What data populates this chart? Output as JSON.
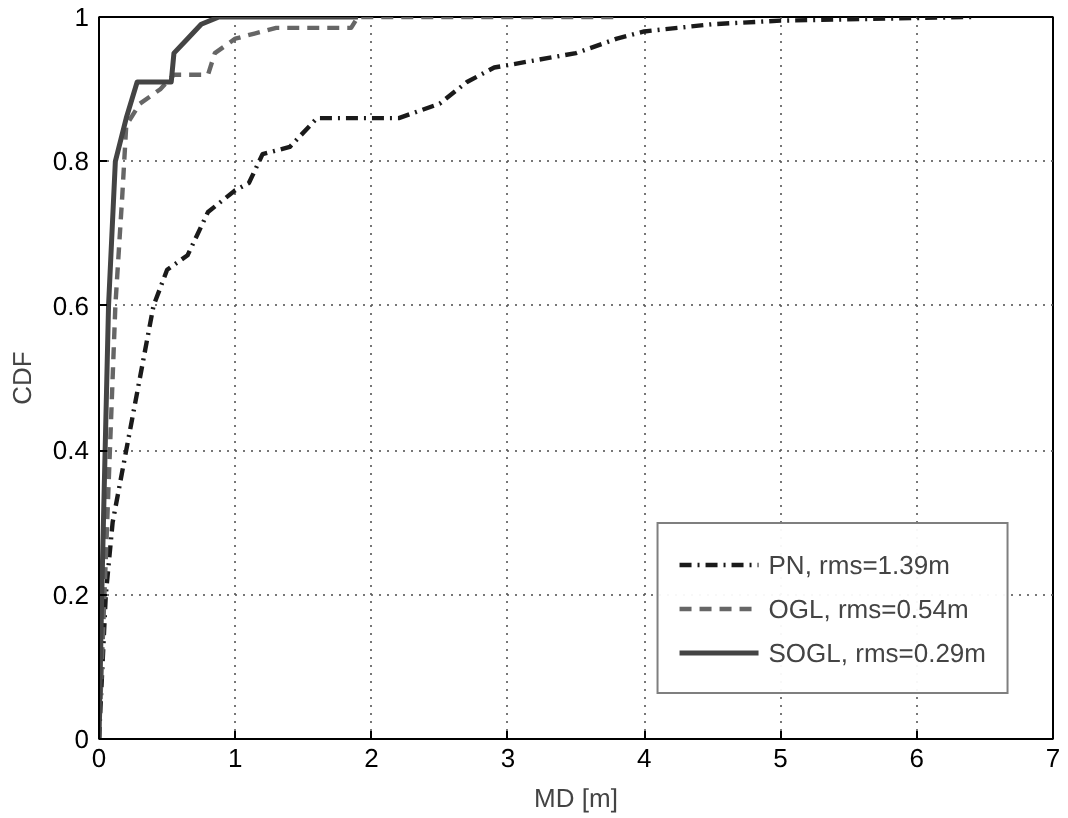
{
  "chart_data": {
    "type": "line",
    "xlabel": "MD [m]",
    "ylabel": "CDF",
    "xlim": [
      0,
      7
    ],
    "ylim": [
      0,
      1
    ],
    "xticks": [
      0,
      1,
      2,
      3,
      4,
      5,
      6,
      7
    ],
    "yticks": [
      0,
      0.2,
      0.4,
      0.6,
      0.8,
      1
    ],
    "grid": true,
    "legend": "bottom right",
    "marker": "none",
    "series": [
      {
        "name": "PN, rms=1.39m",
        "color": "#1a1a1a",
        "line_style": "dashdot",
        "x": [
          0,
          0.05,
          0.1,
          0.2,
          0.3,
          0.4,
          0.5,
          0.65,
          0.8,
          1.0,
          1.1,
          1.2,
          1.4,
          1.6,
          2.2,
          2.5,
          2.7,
          2.9,
          3.2,
          3.5,
          3.8,
          4.0,
          4.5,
          5.0,
          6.4
        ],
        "values": [
          0,
          0.2,
          0.3,
          0.4,
          0.5,
          0.6,
          0.65,
          0.67,
          0.73,
          0.76,
          0.77,
          0.81,
          0.82,
          0.86,
          0.86,
          0.88,
          0.91,
          0.93,
          0.94,
          0.95,
          0.97,
          0.98,
          0.99,
          0.995,
          1.0
        ]
      },
      {
        "name": "OGL, rms=0.54m",
        "color": "#666666",
        "line_style": "dashed",
        "x": [
          0,
          0.04,
          0.08,
          0.12,
          0.17,
          0.2,
          0.3,
          0.45,
          0.55,
          0.8,
          0.85,
          1.0,
          1.3,
          1.85,
          1.9,
          3.8
        ],
        "values": [
          0,
          0.2,
          0.4,
          0.6,
          0.75,
          0.85,
          0.88,
          0.9,
          0.92,
          0.92,
          0.95,
          0.97,
          0.985,
          0.985,
          1.0,
          1.0
        ]
      },
      {
        "name": "SOGL, rms=0.29m",
        "color": "#444444",
        "line_style": "solid",
        "x": [
          0,
          0.02,
          0.07,
          0.12,
          0.2,
          0.28,
          0.53,
          0.55,
          0.65,
          0.75,
          0.88,
          1.9
        ],
        "values": [
          0,
          0.2,
          0.6,
          0.8,
          0.86,
          0.91,
          0.91,
          0.95,
          0.97,
          0.99,
          1.0,
          1.0
        ]
      }
    ]
  }
}
